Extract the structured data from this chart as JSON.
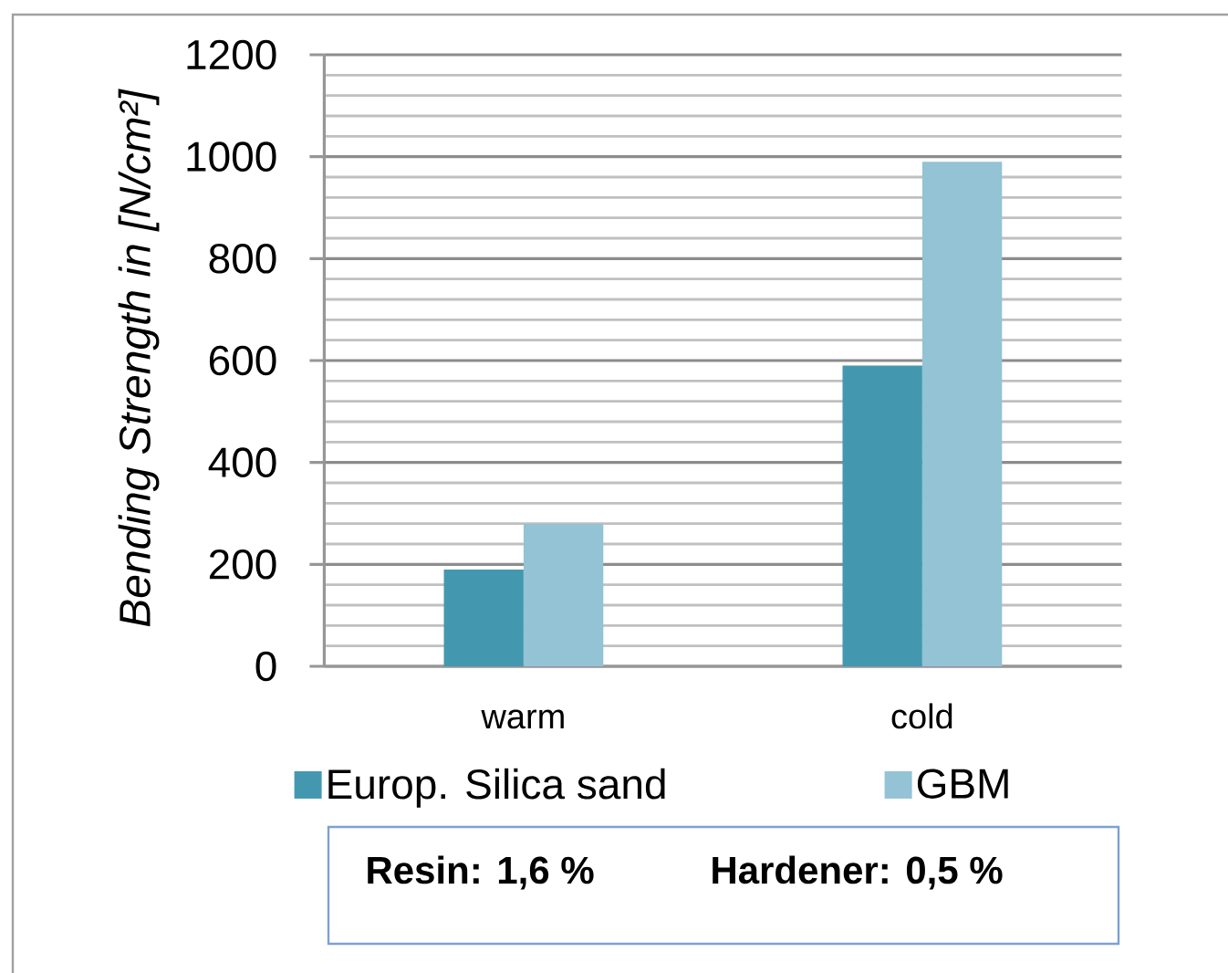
{
  "chart_data": {
    "type": "bar",
    "ylabel": "Bending Strength in [N/cm²]",
    "categories": [
      "warm",
      "cold"
    ],
    "series": [
      {
        "name": "Europ. Silica sand",
        "color": "#4398b0",
        "values": [
          190,
          590
        ]
      },
      {
        "name": "GBM",
        "color": "#93c3d5",
        "values": [
          280,
          990
        ]
      }
    ],
    "ylim": [
      0,
      1200
    ],
    "yticks": [
      0,
      {
        "value": 40,
        "label": null
      },
      {
        "value": 80,
        "label": null
      },
      {
        "value": 120,
        "label": null
      },
      {
        "value": 160,
        "label": null
      },
      200,
      {
        "value": 240,
        "label": null
      },
      {
        "value": 280,
        "label": null
      },
      {
        "value": 320,
        "label": null
      },
      {
        "value": 360,
        "label": null
      },
      400,
      {
        "value": 440,
        "label": null
      },
      {
        "value": 480,
        "label": null
      },
      {
        "value": 520,
        "label": null
      },
      {
        "value": 560,
        "label": null
      },
      600,
      {
        "value": 640,
        "label": null
      },
      {
        "value": 680,
        "label": null
      },
      {
        "value": 720,
        "label": null
      },
      {
        "value": 760,
        "label": null
      },
      800,
      {
        "value": 840,
        "label": null
      },
      {
        "value": 880,
        "label": null
      },
      {
        "value": 920,
        "label": null
      },
      {
        "value": 960,
        "label": null
      },
      1000,
      {
        "value": 1040,
        "label": null
      },
      {
        "value": 1080,
        "label": null
      },
      {
        "value": 1120,
        "label": null
      },
      {
        "value": 1160,
        "label": null
      },
      1200
    ],
    "grid": "y",
    "legend": "bottom",
    "annotations": [
      "Resin:  1,6 %",
      "Hardener: 0,5 %"
    ]
  }
}
